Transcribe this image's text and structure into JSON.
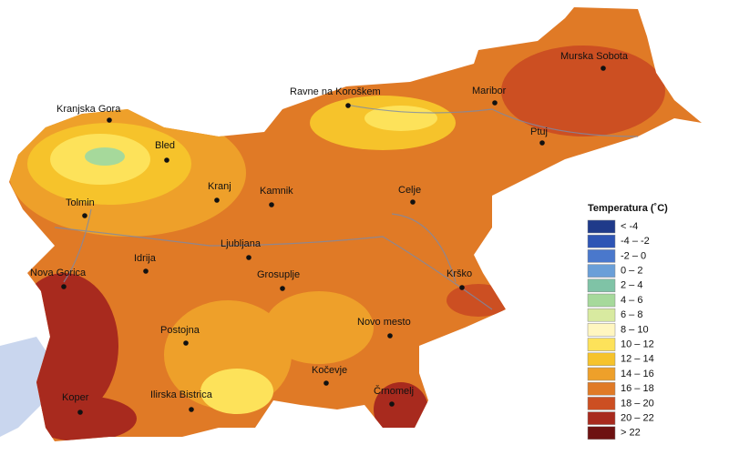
{
  "legend": {
    "title": "Temperatura (˚C)",
    "items": [
      {
        "label": "< -4",
        "color": "#1f3a8a"
      },
      {
        "label": "-4 – -2",
        "color": "#2e55b5"
      },
      {
        "label": "-2 – 0",
        "color": "#4a78cc"
      },
      {
        "label": "0 – 2",
        "color": "#6a9fd8"
      },
      {
        "label": "2 – 4",
        "color": "#7fc3a6"
      },
      {
        "label": "4 – 6",
        "color": "#a6d99b"
      },
      {
        "label": "6 – 8",
        "color": "#d8eaa0"
      },
      {
        "label": "8 – 10",
        "color": "#fff6c0"
      },
      {
        "label": "10 – 12",
        "color": "#fde25a"
      },
      {
        "label": "12 – 14",
        "color": "#f6c32b"
      },
      {
        "label": "14 – 16",
        "color": "#eea02a"
      },
      {
        "label": "16 – 18",
        "color": "#e07a26"
      },
      {
        "label": "18 – 20",
        "color": "#cc4f22"
      },
      {
        "label": "20 – 22",
        "color": "#a82a1e"
      },
      {
        "label": "> 22",
        "color": "#6e1212"
      }
    ]
  },
  "map": {
    "cities": [
      "Murska Sobota",
      "Ravne na Koroškem",
      "Maribor",
      "Kranjska Gora",
      "Ptuj",
      "Bled",
      "Kranj",
      "Kamnik",
      "Celje",
      "Tolmin",
      "Ljubljana",
      "Idrija",
      "Nova Gorica",
      "Grosuplje",
      "Krško",
      "Novo mesto",
      "Postojna",
      "Kočevje",
      "Ilirska Bistrica",
      "Koper",
      "Črnomelj"
    ]
  }
}
